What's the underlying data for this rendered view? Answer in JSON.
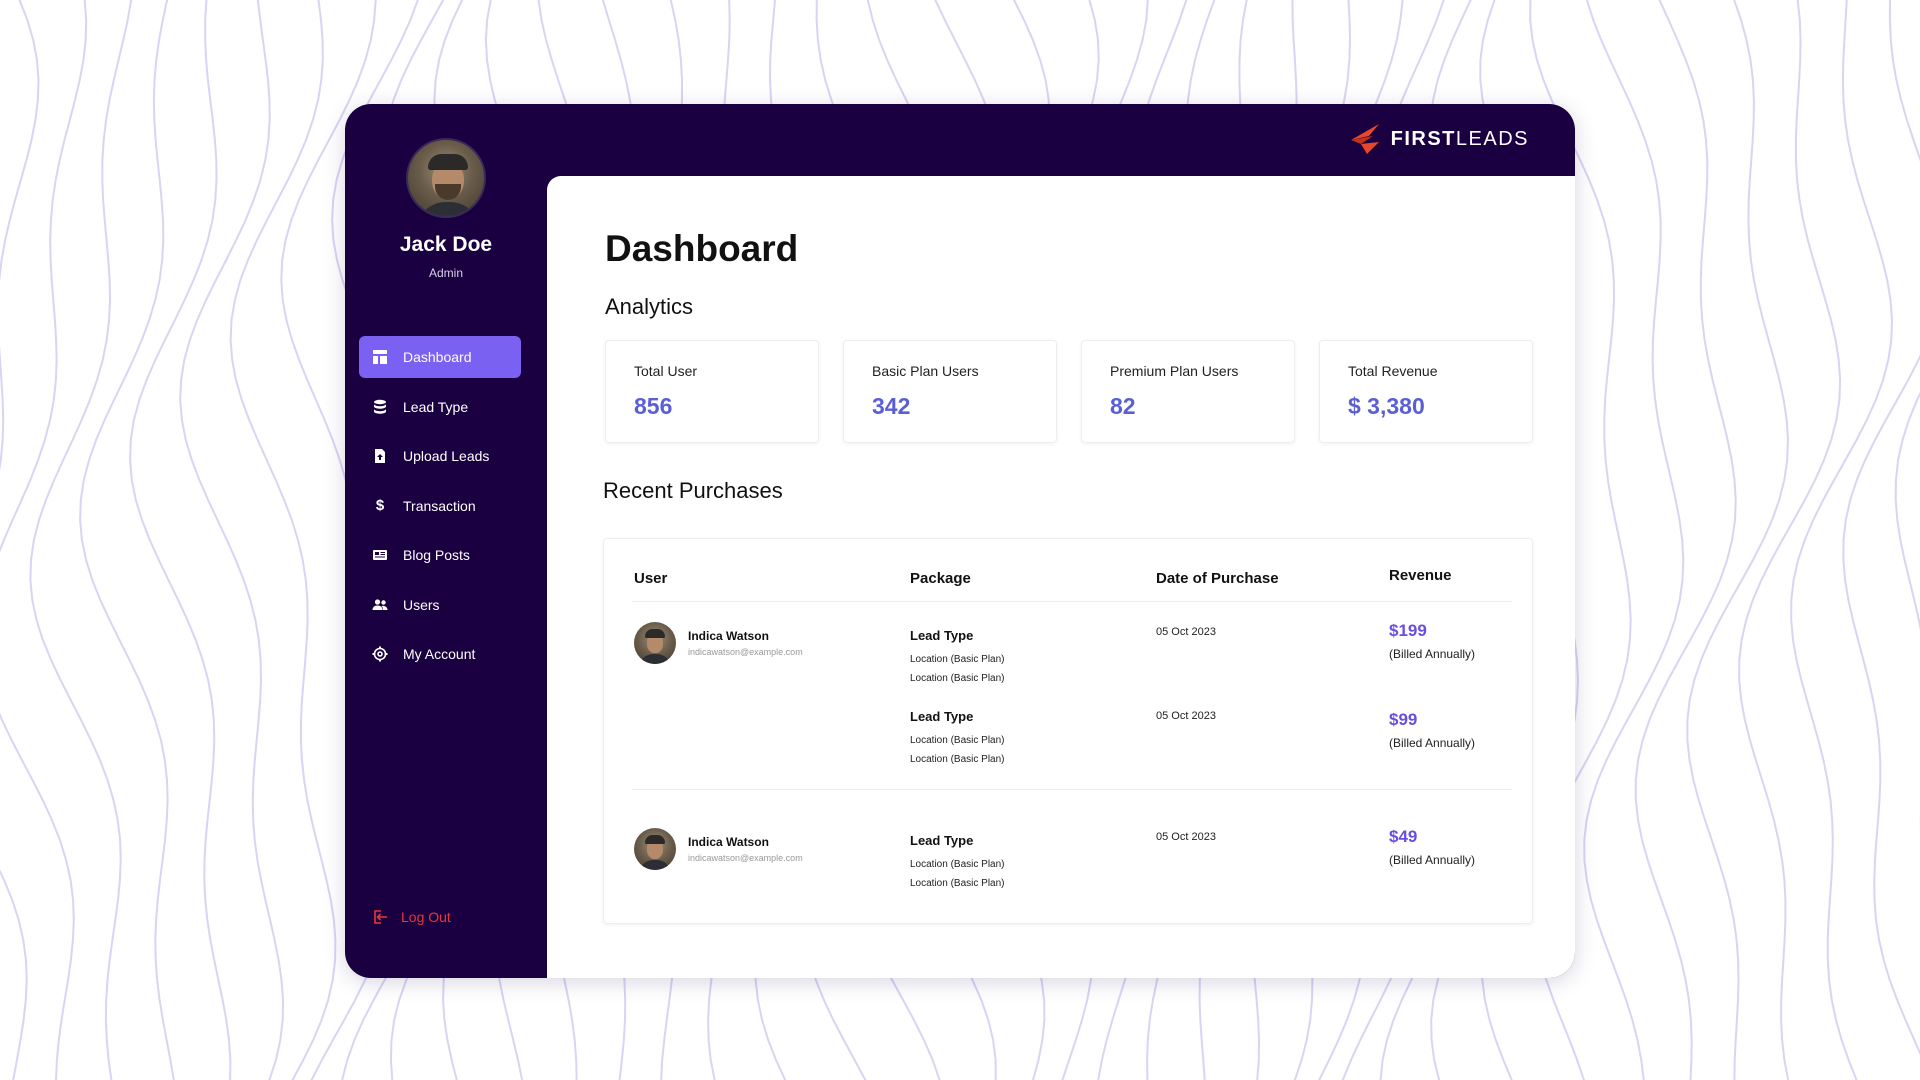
{
  "user": {
    "name": "Jack Doe",
    "role": "Admin"
  },
  "nav": [
    {
      "label": "Dashboard",
      "icon": "dashboard-icon",
      "active": true
    },
    {
      "label": "Lead Type",
      "icon": "database-icon",
      "active": false
    },
    {
      "label": "Upload Leads",
      "icon": "upload-file-icon",
      "active": false
    },
    {
      "label": "Transaction",
      "icon": "dollar-icon",
      "active": false
    },
    {
      "label": "Blog Posts",
      "icon": "newspaper-icon",
      "active": false
    },
    {
      "label": "Users",
      "icon": "users-icon",
      "active": false
    },
    {
      "label": "My Account",
      "icon": "gear-icon",
      "active": false
    }
  ],
  "logout": {
    "label": "Log Out",
    "icon": "logout-icon",
    "color": "#e5383b"
  },
  "brand": {
    "name": "FIRSTLEADS",
    "first": "FIRST",
    "second": "LEADS",
    "accent": "#e8472b"
  },
  "page": {
    "title": "Dashboard"
  },
  "analytics": {
    "title": "Analytics",
    "cards": [
      {
        "label": "Total User",
        "value": "856"
      },
      {
        "label": "Basic Plan Users",
        "value": "342"
      },
      {
        "label": "Premium Plan Users",
        "value": "82"
      },
      {
        "label": "Total Revenue",
        "value": "$ 3,380"
      }
    ]
  },
  "recent": {
    "title": "Recent Purchases",
    "columns": [
      "User",
      "Package",
      "Date of Purchase",
      "Revenue"
    ],
    "purchases": [
      {
        "user": {
          "name": "Indica Watson",
          "email": "indicawatson@example.com"
        },
        "items": [
          {
            "package": "Lead Type",
            "lines": [
              "Location (Basic Plan)",
              "Location (Basic Plan)"
            ],
            "date": "05 Oct 2023",
            "amount": "$199",
            "note": "(Billed Annually)"
          },
          {
            "package": "Lead Type",
            "lines": [
              "Location (Basic Plan)",
              "Location (Basic Plan)"
            ],
            "date": "05 Oct 2023",
            "amount": "$99",
            "note": "(Billed Annually)"
          }
        ]
      },
      {
        "user": {
          "name": "Indica Watson",
          "email": "indicawatson@example.com"
        },
        "items": [
          {
            "package": "Lead Type",
            "lines": [
              "Location (Basic Plan)",
              "Location (Basic Plan)"
            ],
            "date": "05 Oct 2023",
            "amount": "$49",
            "note": "(Billed Annually)"
          }
        ]
      }
    ]
  },
  "colors": {
    "sidebar": "#1a0040",
    "accent": "#7b61f1",
    "stat_value": "#5a5fd6",
    "revenue": "#6a4ee0",
    "wave": "#d9d4f4"
  }
}
